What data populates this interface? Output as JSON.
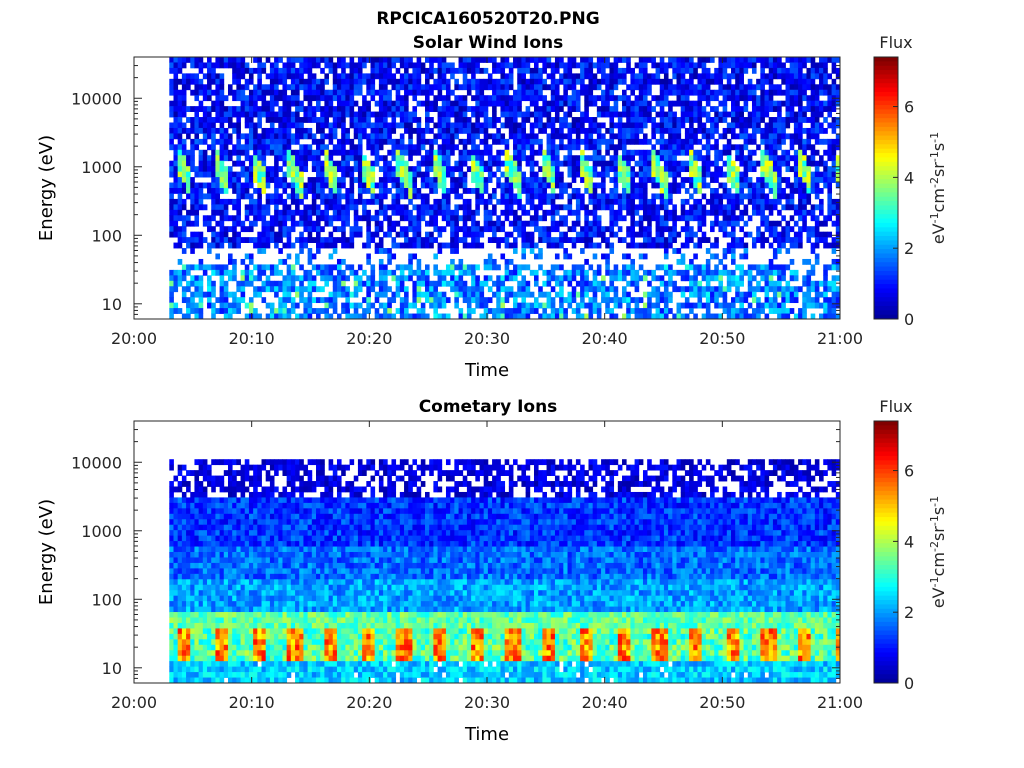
{
  "figure": {
    "title": "RPCICA160520T20.PNG"
  },
  "colormap_stops": [
    "#00008f",
    "#0000ff",
    "#0080ff",
    "#00ffff",
    "#80ff80",
    "#ffff00",
    "#ff8000",
    "#ff0000",
    "#800000"
  ],
  "chart_data": [
    {
      "type": "heatmap",
      "title": "Solar Wind Ions",
      "xlabel": "Time",
      "ylabel": "Energy (eV)",
      "x_tick_labels": [
        "20:00",
        "20:10",
        "20:20",
        "20:30",
        "20:40",
        "20:50",
        "21:00"
      ],
      "xlim": [
        "20:00",
        "21:00"
      ],
      "y_tick_labels": [
        "10",
        "100",
        "1000",
        "10000"
      ],
      "y_scale": "log",
      "ylim": [
        6,
        40000
      ],
      "data_start": "20:03",
      "colorbar": {
        "label": "Flux",
        "units": "eV-1cm-2sr-1s-1",
        "range": [
          0,
          7.4
        ],
        "tick_labels": [
          "0",
          "2",
          "4",
          "6"
        ]
      },
      "features": [
        {
          "energy_range_eV": [
            300,
            2500
          ],
          "level": "3-5",
          "pattern": "periodic bursts about every 3 min"
        },
        {
          "energy_range_eV": [
            3000,
            40000
          ],
          "level": "0.5-1.5"
        },
        {
          "energy_range_eV": [
            6,
            40
          ],
          "level": "1-2.5",
          "pattern": "patchy"
        }
      ]
    },
    {
      "type": "heatmap",
      "title": "Cometary Ions",
      "xlabel": "Time",
      "ylabel": "Energy (eV)",
      "x_tick_labels": [
        "20:00",
        "20:10",
        "20:20",
        "20:30",
        "20:40",
        "20:50",
        "21:00"
      ],
      "xlim": [
        "20:00",
        "21:00"
      ],
      "y_tick_labels": [
        "10",
        "100",
        "1000",
        "10000"
      ],
      "y_scale": "log",
      "ylim": [
        6,
        40000
      ],
      "data_start": "20:03",
      "colorbar": {
        "label": "Flux",
        "units": "eV-1cm-2sr-1s-1",
        "range": [
          0,
          7.4
        ],
        "tick_labels": [
          "0",
          "2",
          "4",
          "6"
        ]
      },
      "features": [
        {
          "energy_range_eV": [
            15,
            40
          ],
          "level": "4.5-6.5",
          "pattern": "periodic peaks about every 3 min"
        },
        {
          "energy_range_eV": [
            40,
            60
          ],
          "level": "3-4"
        },
        {
          "energy_range_eV": [
            60,
            3000
          ],
          "level": "1-2.5"
        },
        {
          "energy_range_eV": [
            3000,
            10000
          ],
          "level": "0.3-1"
        }
      ]
    }
  ]
}
